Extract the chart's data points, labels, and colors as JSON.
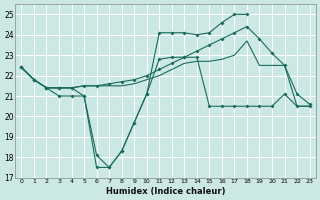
{
  "xlabel": "Humidex (Indice chaleur)",
  "bg_color": "#cce8e4",
  "grid_color": "#ffffff",
  "line_color": "#1a6b5e",
  "ylim": [
    17,
    25.5
  ],
  "yticks": [
    17,
    18,
    19,
    20,
    21,
    22,
    23,
    24,
    25
  ],
  "xlim": [
    -0.5,
    23.5
  ],
  "xticks": [
    0,
    1,
    2,
    3,
    4,
    5,
    6,
    7,
    8,
    9,
    10,
    11,
    12,
    13,
    14,
    15,
    16,
    17,
    18,
    19,
    20,
    21,
    22,
    23
  ],
  "s1_x": [
    0,
    1,
    2,
    3,
    4,
    5,
    6,
    7,
    8,
    9,
    10,
    11,
    12,
    13,
    14,
    15,
    16,
    17,
    18
  ],
  "s1_y": [
    22.4,
    21.8,
    21.4,
    21.0,
    21.0,
    21.0,
    18.1,
    17.5,
    18.3,
    19.7,
    21.1,
    24.1,
    24.1,
    24.1,
    24.0,
    24.1,
    24.6,
    25.0,
    25.0
  ],
  "s2_x": [
    0,
    1,
    2,
    3,
    4,
    5,
    6,
    7,
    8,
    9,
    10,
    11,
    12,
    13,
    14,
    15,
    16,
    17,
    18,
    19,
    20,
    21,
    22,
    23
  ],
  "s2_y": [
    22.4,
    21.8,
    21.4,
    21.4,
    21.4,
    21.5,
    21.5,
    21.6,
    21.7,
    21.8,
    22.0,
    22.3,
    22.6,
    22.9,
    23.2,
    23.5,
    23.8,
    24.1,
    24.4,
    23.8,
    23.1,
    22.5,
    21.1,
    20.6
  ],
  "s3_x": [
    0,
    1,
    2,
    3,
    4,
    5,
    6,
    7,
    8,
    9,
    10,
    11,
    12,
    13,
    14,
    15,
    16,
    17,
    18,
    19,
    20,
    21,
    22,
    23
  ],
  "s3_y": [
    22.4,
    21.8,
    21.4,
    21.4,
    21.4,
    21.5,
    21.5,
    21.5,
    21.5,
    21.6,
    21.8,
    22.0,
    22.3,
    22.6,
    22.7,
    22.7,
    22.8,
    23.0,
    23.7,
    22.5,
    22.5,
    22.5,
    20.5,
    20.5
  ],
  "s4_x": [
    0,
    1,
    2,
    3,
    4,
    5,
    6,
    7,
    8,
    9,
    10,
    11,
    12,
    13,
    14,
    15,
    16,
    17,
    18,
    19,
    20,
    21,
    22,
    23
  ],
  "s4_y": [
    22.4,
    21.8,
    21.4,
    21.4,
    21.4,
    21.0,
    17.5,
    17.5,
    18.3,
    19.7,
    21.1,
    22.8,
    22.9,
    22.9,
    22.9,
    20.5,
    20.5,
    20.5,
    20.5,
    20.5,
    20.5,
    21.1,
    20.5,
    20.5
  ]
}
